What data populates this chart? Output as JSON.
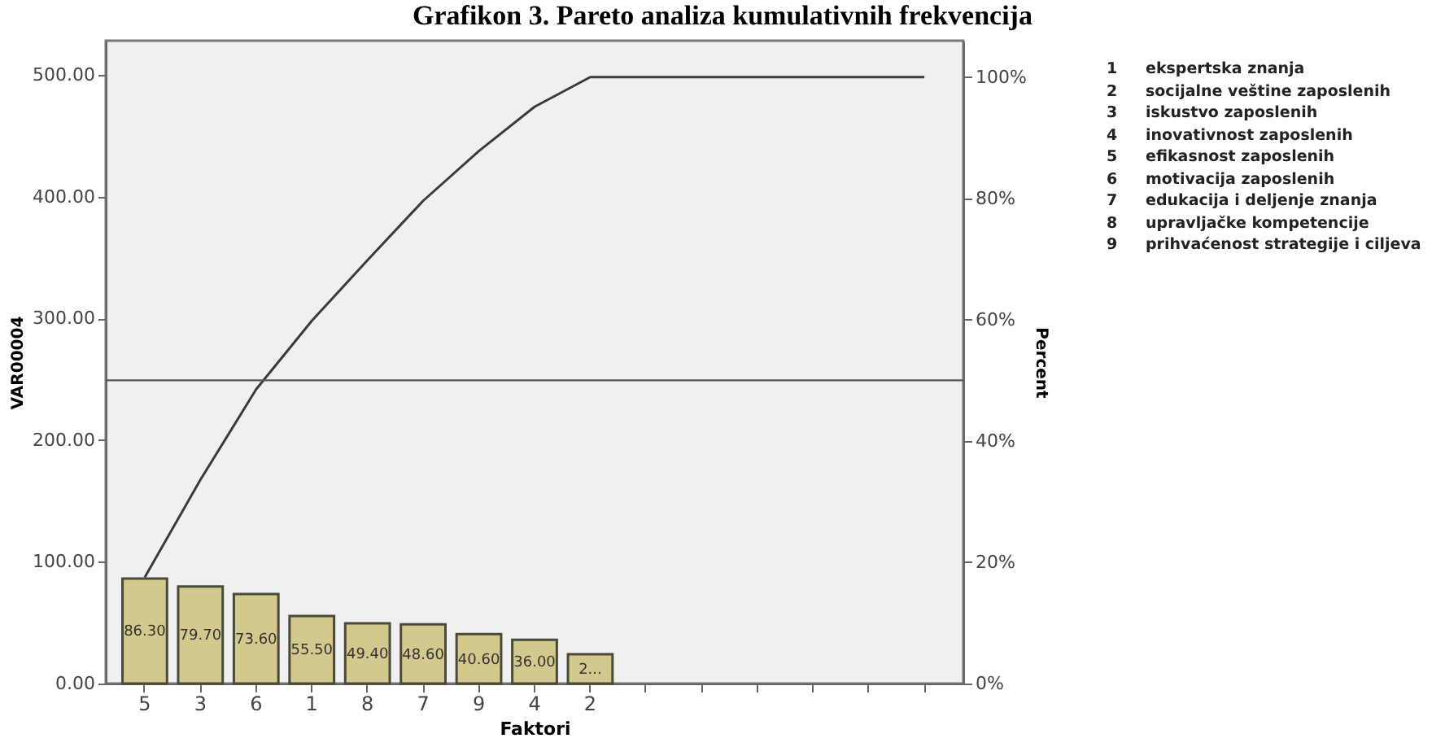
{
  "chart_data": {
    "type": "bar",
    "title": "Grafikon 3. Pareto analiza kumulativnih frekvencija",
    "xlabel": "Faktori",
    "ylabel": "VAR00004",
    "y2label": "Percent",
    "categories": [
      "5",
      "3",
      "6",
      "1",
      "8",
      "7",
      "9",
      "4",
      "2",
      null,
      null,
      null,
      null,
      null,
      null
    ],
    "series": [
      {
        "color": "#d3c88e",
        "values": [
          86.3,
          79.7,
          73.6,
          55.5,
          49.4,
          48.6,
          40.6,
          36.0,
          24,
          null,
          null,
          null,
          null,
          null,
          null
        ],
        "value_labels": [
          "86.30",
          "79.70",
          "73.60",
          "55.50",
          "49.40",
          "48.60",
          "40.60",
          "36.00",
          "2...",
          null,
          null,
          null,
          null,
          null,
          null
        ]
      },
      {
        "type": "line",
        "axis": "y2",
        "color": "#3a3a3a",
        "values": [
          17.5,
          33.6,
          48.5,
          59.8,
          69.8,
          79.6,
          87.8,
          95.1,
          100,
          100,
          100,
          100,
          100,
          100,
          100
        ]
      }
    ],
    "ylim": [
      0,
      528
    ],
    "yticks": [
      {
        "value": 0,
        "label": "0.00"
      },
      {
        "value": 100,
        "label": "100.00"
      },
      {
        "value": 200,
        "label": "200.00"
      },
      {
        "value": 300,
        "label": "300.00"
      },
      {
        "value": 400,
        "label": "400.00"
      },
      {
        "value": 500,
        "label": "500.00"
      }
    ],
    "y2lim": [
      0,
      106
    ],
    "y2ticks": [
      {
        "value": 0,
        "label": "0%"
      },
      {
        "value": 20,
        "label": "20%"
      },
      {
        "value": 40,
        "label": "40%"
      },
      {
        "value": 60,
        "label": "60%"
      },
      {
        "value": 80,
        "label": "80%"
      },
      {
        "value": 100,
        "label": "100%"
      }
    ],
    "ref_lines": [
      {
        "axis": "y2",
        "value": 50,
        "color": "#555555"
      }
    ],
    "grid": false,
    "annotations": [
      "1 ekspertska znanja",
      "2 socijalne veštine zaposlenih",
      "3 iskustvo zaposlenih",
      "4 inovativnost zaposlenih",
      "5 efikasnost zaposlenih",
      "6 motivacija zaposlenih",
      "7 edukacija i deljenje znanja",
      "8 upravljačke kompetencije",
      "9 prihvaćenost strategije i ciljeva"
    ]
  }
}
